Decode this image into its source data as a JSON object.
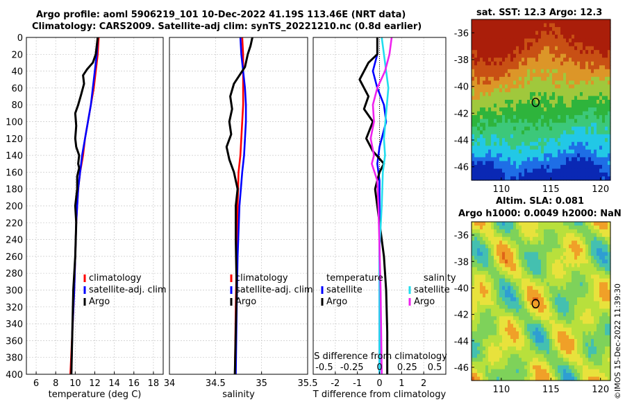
{
  "figure": {
    "title_line1": "Argo profile: aoml 5906219_101 10-Dec-2022 41.19S 113.46E (NRT data)",
    "title_line2": "Climatology: CARS2009. Satellite-adj clim: synTS_20221210.nc (0.8d earlier)",
    "credit": "©IMOS 15-Dec-2022 11:39:30"
  },
  "colors": {
    "climatology": "#ff0000",
    "satellite": "#0000ff",
    "argo": "#000000",
    "sat_salinity": "#22ddee",
    "argo_salinity": "#ee22ee",
    "grid": "#c8c8c8"
  },
  "chart_data": [
    {
      "type": "line",
      "name": "temperature-profile",
      "xlabel": "temperature (deg C)",
      "ylabel": "",
      "xlim": [
        5,
        19
      ],
      "ylim": [
        0,
        400
      ],
      "y_reversed": true,
      "xticks": [
        6,
        8,
        10,
        12,
        14,
        16,
        18
      ],
      "yticks": [
        0,
        20,
        40,
        60,
        80,
        100,
        120,
        140,
        160,
        180,
        200,
        220,
        240,
        260,
        280,
        300,
        320,
        340,
        360,
        380,
        400
      ],
      "grid": true,
      "legend": [
        "climatology",
        "satellite-adj. clim",
        "Argo"
      ],
      "series": [
        {
          "name": "climatology",
          "color_key": "climatology",
          "x": [
            12.4,
            12.3,
            12.1,
            11.9,
            11.6,
            11.3,
            11.0,
            10.8,
            10.5,
            10.3,
            10.1,
            10.0,
            9.9,
            9.7,
            9.5
          ],
          "y": [
            0,
            20,
            40,
            60,
            80,
            100,
            120,
            140,
            160,
            180,
            220,
            260,
            300,
            350,
            400
          ]
        },
        {
          "name": "satellite-adj. clim",
          "color_key": "satellite",
          "x": [
            12.3,
            12.2,
            12.0,
            11.8,
            11.6,
            11.3,
            11.0,
            10.7,
            10.5,
            10.3,
            10.1,
            10.0,
            9.9,
            9.7,
            9.6
          ],
          "y": [
            0,
            20,
            40,
            60,
            80,
            100,
            120,
            140,
            160,
            180,
            220,
            260,
            300,
            350,
            400
          ]
        },
        {
          "name": "Argo",
          "color_key": "argo",
          "x": [
            12.3,
            12.2,
            12.1,
            11.8,
            11.2,
            10.8,
            10.9,
            10.6,
            10.3,
            10.0,
            10.1,
            10.0,
            10.1,
            10.4,
            10.3,
            10.4,
            10.2,
            10.2,
            10.0,
            10.1,
            10.0,
            9.8,
            9.7,
            9.6
          ],
          "y": [
            0,
            10,
            20,
            30,
            38,
            45,
            55,
            68,
            80,
            90,
            105,
            120,
            130,
            140,
            150,
            155,
            165,
            180,
            200,
            220,
            260,
            300,
            350,
            400
          ]
        }
      ]
    },
    {
      "type": "line",
      "name": "salinity-profile",
      "xlabel": "salinity",
      "xlim": [
        34.0,
        35.5
      ],
      "ylim": [
        0,
        400
      ],
      "y_reversed": true,
      "xticks": [
        34,
        34.5,
        35,
        35.5
      ],
      "xtick_labels": [
        "34",
        "34.5",
        "35",
        "35.5"
      ],
      "grid": true,
      "legend": [
        "climatology",
        "satellite-adj. clim",
        "Argo"
      ],
      "series": [
        {
          "name": "climatology",
          "color_key": "climatology",
          "x": [
            34.79,
            34.8,
            34.8,
            34.8,
            34.8,
            34.79,
            34.78,
            34.77,
            34.75,
            34.74,
            34.73,
            34.72,
            34.71
          ],
          "y": [
            0,
            20,
            40,
            60,
            80,
            100,
            120,
            140,
            160,
            200,
            260,
            320,
            400
          ]
        },
        {
          "name": "satellite-adj. clim",
          "color_key": "satellite",
          "x": [
            34.77,
            34.78,
            34.8,
            34.82,
            34.83,
            34.83,
            34.82,
            34.81,
            34.79,
            34.76,
            34.74,
            34.73,
            34.72
          ],
          "y": [
            0,
            20,
            40,
            60,
            80,
            100,
            120,
            140,
            160,
            200,
            260,
            320,
            400
          ]
        },
        {
          "name": "Argo",
          "color_key": "argo",
          "x": [
            34.9,
            34.88,
            34.85,
            34.82,
            34.76,
            34.7,
            34.66,
            34.68,
            34.65,
            34.67,
            34.62,
            34.65,
            34.7,
            34.74,
            34.72,
            34.72,
            34.73,
            34.72,
            34.71
          ],
          "y": [
            0,
            10,
            20,
            35,
            45,
            55,
            70,
            85,
            100,
            115,
            130,
            145,
            160,
            180,
            200,
            240,
            300,
            350,
            400
          ]
        }
      ]
    },
    {
      "type": "line",
      "name": "difference-profile",
      "xlabel": "T difference from climatology",
      "top_label": "S difference from climatology",
      "xlim": [
        -3,
        3
      ],
      "ylim": [
        0,
        400
      ],
      "y_reversed": true,
      "xticks": [
        -2,
        -1,
        0,
        1,
        2
      ],
      "top_ticks": [
        -0.5,
        -0.25,
        0,
        0.25,
        0.5
      ],
      "top_tick_labels": [
        "-0.5",
        "-0.25",
        "0",
        "0.25",
        "0.5"
      ],
      "grid": true,
      "legend_temperature_title": "temperature",
      "legend_salinity_title": "salinity",
      "legend": [
        "satellite",
        "Argo",
        "satellite",
        "Argo"
      ],
      "series": [
        {
          "name": "temperature satellite",
          "color_key": "satellite",
          "x": [
            -0.1,
            -0.1,
            -0.3,
            -0.1,
            0.2,
            0.3,
            0.0,
            -0.1,
            0.0,
            0.0,
            0.0,
            0.0
          ],
          "y": [
            0,
            20,
            40,
            60,
            80,
            100,
            130,
            150,
            170,
            200,
            300,
            400
          ]
        },
        {
          "name": "temperature Argo",
          "color_key": "argo",
          "x": [
            -0.1,
            -0.1,
            -0.5,
            -0.9,
            -0.5,
            -0.7,
            -0.3,
            -0.6,
            -0.3,
            0.2,
            0.0,
            -0.2,
            0.0,
            0.2,
            0.3,
            0.35,
            0.35
          ],
          "y": [
            0,
            20,
            30,
            50,
            70,
            85,
            100,
            120,
            135,
            150,
            160,
            180,
            220,
            260,
            300,
            350,
            400
          ]
        },
        {
          "name": "salinity satellite",
          "color_key": "sat_salinity",
          "x": [
            0.02,
            0.05,
            0.08,
            0.06,
            0.04,
            0.05,
            0.03,
            0.02,
            0.0,
            0.0,
            0.0
          ],
          "y": [
            0,
            30,
            60,
            90,
            120,
            140,
            160,
            200,
            250,
            300,
            400
          ]
        },
        {
          "name": "salinity Argo",
          "color_key": "argo_salinity",
          "x": [
            0.11,
            0.09,
            0.05,
            -0.02,
            -0.06,
            -0.05,
            -0.08,
            -0.05,
            -0.07,
            -0.02,
            -0.01,
            0.0,
            0.01,
            0.02
          ],
          "y": [
            0,
            20,
            40,
            60,
            80,
            100,
            120,
            140,
            150,
            170,
            200,
            250,
            300,
            400
          ]
        }
      ]
    },
    {
      "type": "heatmap",
      "name": "sst-map",
      "title": "sat. SST: 12.3 Argo: 12.3",
      "xlim": [
        107,
        121
      ],
      "ylim": [
        -47,
        -35
      ],
      "xticks": [
        110,
        115,
        120
      ],
      "yticks": [
        -36,
        -38,
        -40,
        -42,
        -44,
        -46
      ],
      "profile_lon": 113.46,
      "profile_lat": -41.19,
      "palette": [
        "#0a28b4",
        "#1e6ee6",
        "#22c8e6",
        "#3cc87a",
        "#2eb43c",
        "#a0c83c",
        "#dc9628",
        "#c85014",
        "#aa1e0a"
      ]
    },
    {
      "type": "heatmap",
      "name": "sla-map",
      "title_line1": "Altim. SLA: 0.081",
      "title_line2": "Argo h1000: 0.0049 h2000: NaN",
      "xlim": [
        107,
        121
      ],
      "ylim": [
        -47,
        -35
      ],
      "xticks": [
        110,
        115,
        120
      ],
      "yticks": [
        -36,
        -38,
        -40,
        -42,
        -44,
        -46
      ],
      "profile_lon": 113.46,
      "profile_lat": -41.19,
      "palette": [
        "#2e9ed2",
        "#44c0b0",
        "#7ed25a",
        "#b8e03c",
        "#e8e23c",
        "#f0a028",
        "#e06418"
      ]
    }
  ]
}
